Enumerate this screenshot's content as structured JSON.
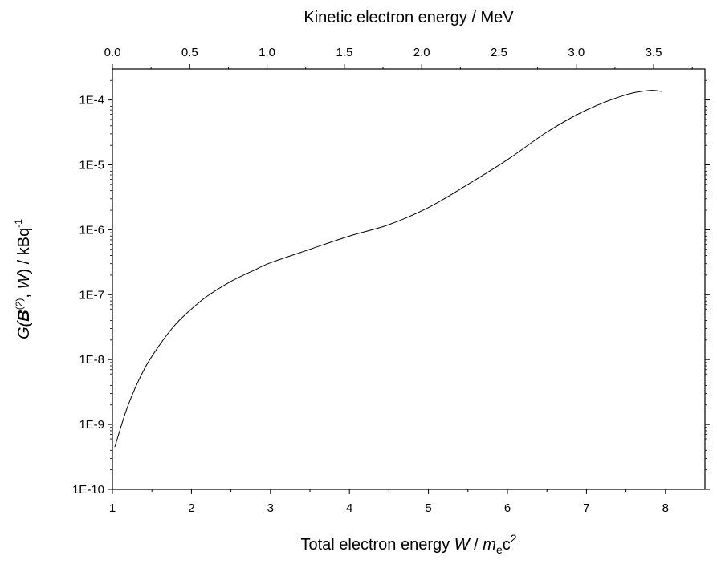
{
  "chart_data": {
    "type": "line",
    "xlabel_parts": [
      "Total electron energy ",
      "W",
      " / ",
      "m",
      "e",
      "c",
      "2"
    ],
    "x2label": "Kinetic electron energy / MeV",
    "ylabel_parts": [
      "G(",
      "B",
      "(2)",
      ", ",
      "W",
      ") /  kBq",
      "-1"
    ],
    "xlim": [
      1,
      8.5
    ],
    "x2lim": [
      0,
      3.832
    ],
    "ylim": [
      1e-10,
      0.0003
    ],
    "yscale": "log",
    "x_ticks": [
      "1",
      "2",
      "3",
      "4",
      "5",
      "6",
      "7",
      "8"
    ],
    "x2_ticks": [
      "0.0",
      "0.5",
      "1.0",
      "1.5",
      "2.0",
      "2.5",
      "3.0",
      "3.5"
    ],
    "y_ticks": [
      "1E-10",
      "1E-9",
      "1E-8",
      "1E-7",
      "1E-6",
      "1E-5",
      "1E-4"
    ],
    "grid": false,
    "series": [
      {
        "color": "#000000",
        "x": [
          1.03,
          1.2,
          1.4,
          1.6,
          1.8,
          2.0,
          2.2,
          2.5,
          2.8,
          3.0,
          3.5,
          4.0,
          4.5,
          5.0,
          5.5,
          6.0,
          6.5,
          7.0,
          7.5,
          7.8,
          7.95
        ],
        "y": [
          4.5e-10,
          2e-09,
          7e-09,
          1.7e-08,
          3.5e-08,
          6e-08,
          9.5e-08,
          1.6e-07,
          2.4e-07,
          3.1e-07,
          5e-07,
          8e-07,
          1.2e-06,
          2.2e-06,
          5e-06,
          1.2e-05,
          3.2e-05,
          7e-05,
          0.00012,
          0.00014,
          0.000135
        ]
      }
    ]
  }
}
